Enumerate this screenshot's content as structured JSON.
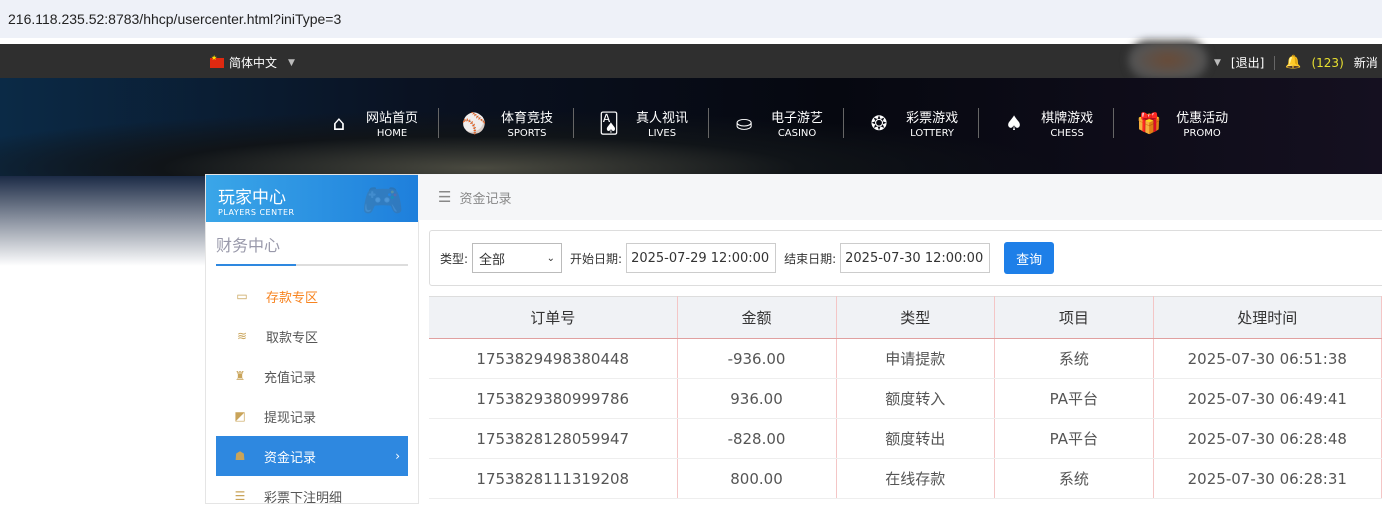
{
  "address": "216.118.235.52:8783/hhcp/usercenter.html?iniType=3",
  "topbar": {
    "language": "简体中文",
    "logout": "[退出]",
    "count": "(123)",
    "message": "新消"
  },
  "nav": [
    {
      "cn": "网站首页",
      "en": "HOME",
      "icon": "home-icon",
      "glyph": "⌂"
    },
    {
      "cn": "体育竞技",
      "en": "SPORTS",
      "icon": "ball-icon",
      "glyph": "⚾"
    },
    {
      "cn": "真人视讯",
      "en": "LIVES",
      "icon": "cards-icon",
      "glyph": "🂡"
    },
    {
      "cn": "电子游艺",
      "en": "CASINO",
      "icon": "slot-icon",
      "glyph": "⛀"
    },
    {
      "cn": "彩票游戏",
      "en": "LOTTERY",
      "icon": "lottery-balls-icon",
      "glyph": "❂"
    },
    {
      "cn": "棋牌游戏",
      "en": "CHESS",
      "icon": "spade-icon",
      "glyph": "♠"
    },
    {
      "cn": "优惠活动",
      "en": "PROMO",
      "icon": "gift-icon",
      "glyph": "🎁"
    }
  ],
  "sidebar": {
    "title": "玩家中心",
    "subtitle": "PLAYERS CENTER",
    "section": "财务中心",
    "items": [
      {
        "label": "存款专区",
        "icon": "card-icon",
        "glyph": "▭"
      },
      {
        "label": "取款专区",
        "icon": "hand-money-icon",
        "glyph": "≋"
      },
      {
        "label": "充值记录",
        "icon": "money-bag-icon",
        "glyph": "♜"
      },
      {
        "label": "提现记录",
        "icon": "wallet-icon",
        "glyph": "◩"
      },
      {
        "label": "资金记录",
        "icon": "house-money-icon",
        "glyph": "☗"
      },
      {
        "label": "彩票下注明细",
        "icon": "list-icon",
        "glyph": "☰"
      }
    ]
  },
  "breadcrumb": "资金记录",
  "filter": {
    "type_label": "类型:",
    "type_value": "全部",
    "start_label": "开始日期:",
    "start_value": "2025-07-29 12:00:00",
    "end_label": "结束日期:",
    "end_value": "2025-07-30 12:00:00",
    "query": "查询"
  },
  "table": {
    "headers": [
      "订单号",
      "金额",
      "类型",
      "项目",
      "处理时间"
    ],
    "rows": [
      [
        "1753829498380448",
        "-936.00",
        "申请提款",
        "系统",
        "2025-07-30 06:51:38"
      ],
      [
        "1753829380999786",
        "936.00",
        "额度转入",
        "PA平台",
        "2025-07-30 06:49:41"
      ],
      [
        "1753828128059947",
        "-828.00",
        "额度转出",
        "PA平台",
        "2025-07-30 06:28:48"
      ],
      [
        "1753828111319208",
        "800.00",
        "在线存款",
        "系统",
        "2025-07-30 06:28:31"
      ]
    ]
  }
}
